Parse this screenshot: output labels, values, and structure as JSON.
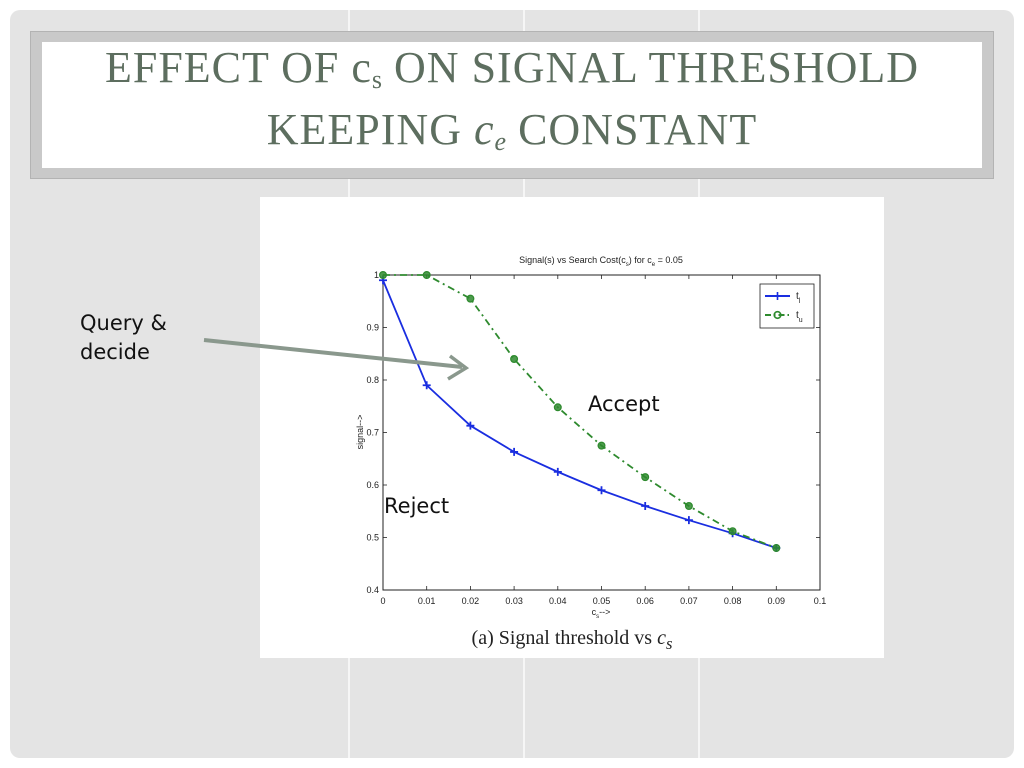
{
  "slide": {
    "title_line1_prefix": "EFFECT OF c",
    "title_line1_sub": "s",
    "title_line1_suffix": " ON SIGNAL THRESHOLD",
    "title_line2_prefix": "KEEPING ",
    "title_line2_var": "c",
    "title_line2_var_sub": "e",
    "title_line2_suffix": " CONSTANT",
    "query_label_line1": "Query &",
    "query_label_line2": "decide",
    "accept_label": "Accept",
    "reject_label": "Reject",
    "caption_prefix": "(a) Signal threshold vs ",
    "caption_var": "c",
    "caption_var_sub": "s"
  },
  "colors": {
    "title": "#5d6e5f",
    "arrow": "#8a988d",
    "series_tl": "#1a2ee0",
    "series_tu": "#2e8a2e"
  },
  "chart_data": {
    "type": "line",
    "title": "Signal(s) vs Search Cost(c",
    "title_sub": "s",
    "title_mid": ") for c",
    "title_sub2": "e",
    "title_tail": " = 0.05",
    "xlabel": "c",
    "xlabel_sub": "s",
    "xlabel_tail": "-->",
    "ylabel": "signal-->",
    "xlim": [
      0,
      0.1
    ],
    "ylim": [
      0.4,
      1.0
    ],
    "xticks": [
      "0",
      "0.01",
      "0.02",
      "0.03",
      "0.04",
      "0.05",
      "0.06",
      "0.07",
      "0.08",
      "0.09",
      "0.1"
    ],
    "yticks": [
      "0.4",
      "0.5",
      "0.6",
      "0.7",
      "0.8",
      "0.9",
      "1"
    ],
    "legend_position": "top-right",
    "series": [
      {
        "name": "t",
        "name_sub": "l",
        "style": "solid",
        "marker": "plus",
        "x": [
          0,
          0.01,
          0.02,
          0.03,
          0.04,
          0.05,
          0.06,
          0.07,
          0.08,
          0.09
        ],
        "values": [
          0.99,
          0.79,
          0.713,
          0.663,
          0.625,
          0.59,
          0.56,
          0.533,
          0.508,
          0.48
        ]
      },
      {
        "name": "t",
        "name_sub": "u",
        "style": "dashdot",
        "marker": "circle",
        "x": [
          0,
          0.01,
          0.02,
          0.03,
          0.04,
          0.05,
          0.06,
          0.07,
          0.08,
          0.09
        ],
        "values": [
          1.0,
          1.0,
          0.955,
          0.84,
          0.748,
          0.675,
          0.615,
          0.56,
          0.512,
          0.48
        ]
      }
    ]
  }
}
